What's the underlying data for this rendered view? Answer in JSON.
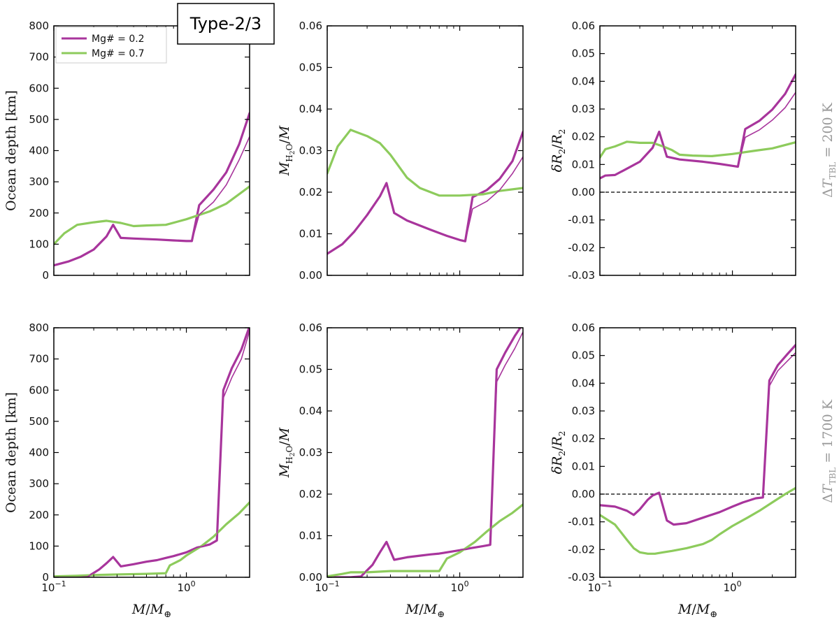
{
  "figure_badge": "Type-2/3",
  "colors": {
    "magenta": "#A8359C",
    "green": "#8DCB5C"
  },
  "legend": [
    "Mg# = 0.2",
    "Mg# = 0.7"
  ],
  "row_labels": [
    "ΔT_TBL = 200 K",
    "ΔT_TBL = 1700 K"
  ],
  "chart_data": [
    {
      "id": "top-left",
      "type": "line",
      "ylabel": "Ocean depth [km]",
      "xlabel": "",
      "xscale": "log",
      "xlim": [
        0.1,
        3.0
      ],
      "ylim": [
        0,
        800
      ],
      "yticks": [
        0,
        100,
        200,
        300,
        400,
        500,
        600,
        700,
        800
      ],
      "ytick_labels": [
        "0",
        "100",
        "200",
        "300",
        "400",
        "500",
        "600",
        "700",
        "800"
      ],
      "series": [
        {
          "name": "Mg# = 0.2",
          "color": "magenta",
          "width": "thick",
          "x": [
            0.1,
            0.13,
            0.16,
            0.2,
            0.25,
            0.28,
            0.32,
            0.4,
            0.6,
            0.8,
            1.0,
            1.1,
            1.25,
            1.6,
            2.0,
            2.5,
            3.0
          ],
          "y": [
            32,
            45,
            60,
            83,
            125,
            162,
            120,
            118,
            115,
            112,
            110,
            110,
            225,
            275,
            330,
            420,
            520
          ]
        },
        {
          "name": "Mg# = 0.2 (thin)",
          "color": "magenta",
          "width": "thin",
          "x": [
            0.1,
            0.13,
            0.16,
            0.2,
            0.25,
            0.28,
            0.32,
            0.4,
            0.6,
            0.8,
            1.0,
            1.1,
            1.25,
            1.6,
            2.0,
            2.5,
            3.0
          ],
          "y": [
            32,
            45,
            60,
            83,
            125,
            162,
            120,
            118,
            115,
            112,
            110,
            110,
            195,
            235,
            290,
            370,
            445
          ]
        },
        {
          "name": "Mg# = 0.7",
          "color": "green",
          "width": "thick",
          "x": [
            0.1,
            0.12,
            0.15,
            0.2,
            0.25,
            0.32,
            0.4,
            0.5,
            0.7,
            1.0,
            1.5,
            2.0,
            3.0
          ],
          "y": [
            100,
            135,
            162,
            170,
            175,
            168,
            158,
            160,
            162,
            180,
            205,
            230,
            285
          ]
        }
      ],
      "hline": null
    },
    {
      "id": "top-middle",
      "type": "line",
      "ylabel": "M_H2O/M",
      "xlabel": "",
      "xscale": "log",
      "xlim": [
        0.1,
        3.0
      ],
      "ylim": [
        0,
        0.06
      ],
      "yticks": [
        0,
        0.01,
        0.02,
        0.03,
        0.04,
        0.05,
        0.06
      ],
      "ytick_labels": [
        "0.00",
        "0.01",
        "0.02",
        "0.03",
        "0.04",
        "0.05",
        "0.06"
      ],
      "series": [
        {
          "name": "Mg# = 0.2",
          "color": "magenta",
          "width": "thick",
          "x": [
            0.1,
            0.13,
            0.16,
            0.2,
            0.25,
            0.28,
            0.32,
            0.4,
            0.6,
            0.8,
            1.0,
            1.1,
            1.25,
            1.6,
            2.0,
            2.5,
            3.0
          ],
          "y": [
            0.0052,
            0.0075,
            0.0105,
            0.0145,
            0.019,
            0.0222,
            0.015,
            0.0132,
            0.011,
            0.0095,
            0.0085,
            0.0082,
            0.0188,
            0.0205,
            0.0232,
            0.0275,
            0.0345
          ]
        },
        {
          "name": "Mg# = 0.2 (thin)",
          "color": "magenta",
          "width": "thin",
          "x": [
            0.1,
            0.13,
            0.16,
            0.2,
            0.25,
            0.28,
            0.32,
            0.4,
            0.6,
            0.8,
            1.0,
            1.1,
            1.25,
            1.6,
            2.0,
            2.5,
            3.0
          ],
          "y": [
            0.0052,
            0.0075,
            0.0105,
            0.0145,
            0.019,
            0.0222,
            0.015,
            0.0132,
            0.011,
            0.0095,
            0.0085,
            0.0082,
            0.016,
            0.0178,
            0.0205,
            0.0245,
            0.0285
          ]
        },
        {
          "name": "Mg# = 0.7",
          "color": "green",
          "width": "thick",
          "x": [
            0.1,
            0.12,
            0.15,
            0.2,
            0.25,
            0.3,
            0.4,
            0.5,
            0.7,
            1.0,
            1.5,
            2.0,
            3.0
          ],
          "y": [
            0.0245,
            0.031,
            0.035,
            0.0335,
            0.0318,
            0.029,
            0.0235,
            0.021,
            0.0192,
            0.0192,
            0.0195,
            0.0203,
            0.021
          ]
        }
      ],
      "hline": null
    },
    {
      "id": "top-right",
      "type": "line",
      "ylabel": "δR2/R2",
      "xlabel": "",
      "xscale": "log",
      "xlim": [
        0.1,
        3.0
      ],
      "ylim": [
        -0.03,
        0.06
      ],
      "yticks": [
        -0.03,
        -0.02,
        -0.01,
        0,
        0.01,
        0.02,
        0.03,
        0.04,
        0.05,
        0.06
      ],
      "ytick_labels": [
        "-0.03",
        "-0.02",
        "-0.01",
        "0.00",
        "0.01",
        "0.02",
        "0.03",
        "0.04",
        "0.05",
        "0.06"
      ],
      "series": [
        {
          "name": "Mg# = 0.2",
          "color": "magenta",
          "width": "thick",
          "x": [
            0.1,
            0.11,
            0.13,
            0.16,
            0.2,
            0.25,
            0.28,
            0.32,
            0.4,
            0.6,
            0.8,
            1.0,
            1.1,
            1.25,
            1.6,
            2.0,
            2.5,
            3.0
          ],
          "y": [
            0.005,
            0.006,
            0.0062,
            0.0085,
            0.011,
            0.016,
            0.0218,
            0.0128,
            0.0118,
            0.011,
            0.0102,
            0.0095,
            0.0092,
            0.0228,
            0.0258,
            0.0298,
            0.0355,
            0.0425
          ]
        },
        {
          "name": "Mg# = 0.2 (thin)",
          "color": "magenta",
          "width": "thin",
          "x": [
            0.1,
            0.11,
            0.13,
            0.16,
            0.2,
            0.25,
            0.28,
            0.32,
            0.4,
            0.6,
            0.8,
            1.0,
            1.1,
            1.25,
            1.6,
            2.0,
            2.5,
            3.0
          ],
          "y": [
            0.005,
            0.006,
            0.0062,
            0.0085,
            0.011,
            0.016,
            0.0218,
            0.0128,
            0.0118,
            0.011,
            0.0102,
            0.0095,
            0.0092,
            0.0198,
            0.0225,
            0.026,
            0.0305,
            0.036
          ]
        },
        {
          "name": "Mg# = 0.7",
          "color": "green",
          "width": "thick",
          "x": [
            0.1,
            0.11,
            0.13,
            0.16,
            0.2,
            0.25,
            0.3,
            0.35,
            0.4,
            0.5,
            0.7,
            1.0,
            1.5,
            2.0,
            3.0
          ],
          "y": [
            0.0125,
            0.0155,
            0.0165,
            0.0182,
            0.0178,
            0.0178,
            0.0165,
            0.0152,
            0.0135,
            0.0132,
            0.013,
            0.0138,
            0.015,
            0.0158,
            0.018
          ]
        }
      ],
      "hline": 0
    },
    {
      "id": "bottom-left",
      "type": "line",
      "ylabel": "Ocean depth [km]",
      "xlabel": "M/M⊕",
      "xscale": "log",
      "xlim": [
        0.1,
        3.0
      ],
      "ylim": [
        0,
        800
      ],
      "yticks": [
        0,
        100,
        200,
        300,
        400,
        500,
        600,
        700,
        800
      ],
      "ytick_labels": [
        "0",
        "100",
        "200",
        "300",
        "400",
        "500",
        "600",
        "700",
        "800"
      ],
      "series": [
        {
          "name": "Mg# = 0.2",
          "color": "magenta",
          "width": "thick",
          "x": [
            0.1,
            0.15,
            0.18,
            0.22,
            0.25,
            0.28,
            0.32,
            0.4,
            0.5,
            0.6,
            0.7,
            0.8,
            1.0,
            1.2,
            1.5,
            1.7,
            1.9,
            2.2,
            2.6,
            3.0
          ],
          "y": [
            0,
            0,
            2,
            25,
            45,
            65,
            35,
            42,
            50,
            55,
            62,
            68,
            80,
            95,
            105,
            118,
            600,
            670,
            730,
            805
          ]
        },
        {
          "name": "Mg# = 0.2 (thin)",
          "color": "magenta",
          "width": "thin",
          "x": [
            0.1,
            0.15,
            0.18,
            0.22,
            0.25,
            0.28,
            0.32,
            0.4,
            0.5,
            0.6,
            0.7,
            0.8,
            1.0,
            1.2,
            1.5,
            1.7,
            1.9,
            2.2,
            2.6,
            3.0
          ],
          "y": [
            0,
            0,
            2,
            25,
            45,
            65,
            35,
            42,
            50,
            55,
            62,
            68,
            80,
            95,
            105,
            118,
            575,
            640,
            700,
            790
          ]
        },
        {
          "name": "Mg# = 0.7",
          "color": "green",
          "width": "thick",
          "x": [
            0.1,
            0.15,
            0.2,
            0.3,
            0.5,
            0.7,
            0.75,
            0.9,
            1.0,
            1.3,
            1.6,
            2.0,
            2.5,
            3.0
          ],
          "y": [
            3,
            5,
            7,
            9,
            11,
            13,
            38,
            55,
            70,
            100,
            130,
            170,
            205,
            240
          ]
        }
      ],
      "hline": null
    },
    {
      "id": "bottom-middle",
      "type": "line",
      "ylabel": "M_H2O/M",
      "xlabel": "M/M⊕",
      "xscale": "log",
      "xlim": [
        0.1,
        3.0
      ],
      "ylim": [
        0,
        0.06
      ],
      "yticks": [
        0,
        0.01,
        0.02,
        0.03,
        0.04,
        0.05,
        0.06
      ],
      "ytick_labels": [
        "0.00",
        "0.01",
        "0.02",
        "0.03",
        "0.04",
        "0.05",
        "0.06"
      ],
      "series": [
        {
          "name": "Mg# = 0.2",
          "color": "magenta",
          "width": "thick",
          "x": [
            0.1,
            0.15,
            0.18,
            0.22,
            0.25,
            0.28,
            0.32,
            0.4,
            0.5,
            0.6,
            0.7,
            0.8,
            1.0,
            1.2,
            1.5,
            1.7,
            1.9,
            2.2,
            2.6,
            3.0
          ],
          "y": [
            0,
            0,
            0.0002,
            0.003,
            0.006,
            0.0085,
            0.0042,
            0.0048,
            0.0052,
            0.0055,
            0.0057,
            0.006,
            0.0065,
            0.007,
            0.0075,
            0.0078,
            0.05,
            0.054,
            0.058,
            0.061
          ]
        },
        {
          "name": "Mg# = 0.2 (thin)",
          "color": "magenta",
          "width": "thin",
          "x": [
            0.1,
            0.15,
            0.18,
            0.22,
            0.25,
            0.28,
            0.32,
            0.4,
            0.5,
            0.6,
            0.7,
            0.8,
            1.0,
            1.2,
            1.5,
            1.7,
            1.9,
            2.2,
            2.6,
            3.0
          ],
          "y": [
            0,
            0,
            0.0002,
            0.003,
            0.006,
            0.0085,
            0.0042,
            0.0048,
            0.0052,
            0.0055,
            0.0057,
            0.006,
            0.0065,
            0.007,
            0.0075,
            0.0078,
            0.047,
            0.051,
            0.055,
            0.059
          ]
        },
        {
          "name": "Mg# = 0.7",
          "color": "green",
          "width": "thick",
          "x": [
            0.1,
            0.13,
            0.15,
            0.2,
            0.3,
            0.5,
            0.7,
            0.8,
            1.0,
            1.3,
            1.6,
            2.0,
            2.5,
            3.0
          ],
          "y": [
            0.0002,
            0.0008,
            0.0012,
            0.0012,
            0.0015,
            0.0015,
            0.0015,
            0.0045,
            0.006,
            0.0085,
            0.011,
            0.0135,
            0.0155,
            0.0175
          ]
        }
      ],
      "hline": null
    },
    {
      "id": "bottom-right",
      "type": "line",
      "ylabel": "δR2/R2",
      "xlabel": "M/M⊕",
      "xscale": "log",
      "xlim": [
        0.1,
        3.0
      ],
      "ylim": [
        -0.03,
        0.06
      ],
      "yticks": [
        -0.03,
        -0.02,
        -0.01,
        0,
        0.01,
        0.02,
        0.03,
        0.04,
        0.05,
        0.06
      ],
      "ytick_labels": [
        "-0.03",
        "-0.02",
        "-0.01",
        "0.00",
        "0.01",
        "0.02",
        "0.03",
        "0.04",
        "0.05",
        "0.06"
      ],
      "series": [
        {
          "name": "Mg# = 0.2",
          "color": "magenta",
          "width": "thick",
          "x": [
            0.1,
            0.13,
            0.16,
            0.18,
            0.2,
            0.23,
            0.25,
            0.28,
            0.32,
            0.36,
            0.45,
            0.6,
            0.8,
            1.0,
            1.2,
            1.5,
            1.7,
            1.9,
            2.2,
            2.6,
            3.0
          ],
          "y": [
            -0.004,
            -0.0045,
            -0.006,
            -0.0075,
            -0.0055,
            -0.002,
            -0.0005,
            0.0005,
            -0.0095,
            -0.011,
            -0.0105,
            -0.0085,
            -0.0065,
            -0.0045,
            -0.003,
            -0.0015,
            -0.0012,
            0.041,
            0.0465,
            0.0505,
            0.0538
          ]
        },
        {
          "name": "Mg# = 0.2 (thin)",
          "color": "magenta",
          "width": "thin",
          "x": [
            0.1,
            0.13,
            0.16,
            0.18,
            0.2,
            0.23,
            0.25,
            0.28,
            0.32,
            0.36,
            0.45,
            0.6,
            0.8,
            1.0,
            1.2,
            1.5,
            1.7,
            1.9,
            2.2,
            2.6,
            3.0
          ],
          "y": [
            -0.004,
            -0.0045,
            -0.006,
            -0.0075,
            -0.0055,
            -0.002,
            -0.0005,
            0.0005,
            -0.0095,
            -0.011,
            -0.0105,
            -0.0085,
            -0.0065,
            -0.0045,
            -0.003,
            -0.0015,
            -0.0012,
            0.039,
            0.0445,
            0.048,
            0.051
          ]
        },
        {
          "name": "Mg# = 0.7",
          "color": "green",
          "width": "thick",
          "x": [
            0.1,
            0.13,
            0.16,
            0.18,
            0.2,
            0.23,
            0.26,
            0.3,
            0.35,
            0.45,
            0.6,
            0.7,
            0.8,
            1.0,
            1.3,
            1.6,
            2.0,
            2.5,
            3.0
          ],
          "y": [
            -0.0075,
            -0.011,
            -0.0165,
            -0.0195,
            -0.021,
            -0.0215,
            -0.0215,
            -0.021,
            -0.0205,
            -0.0195,
            -0.018,
            -0.0165,
            -0.0145,
            -0.0115,
            -0.0085,
            -0.006,
            -0.003,
            0.0,
            0.0022
          ]
        }
      ],
      "hline": 0
    }
  ]
}
